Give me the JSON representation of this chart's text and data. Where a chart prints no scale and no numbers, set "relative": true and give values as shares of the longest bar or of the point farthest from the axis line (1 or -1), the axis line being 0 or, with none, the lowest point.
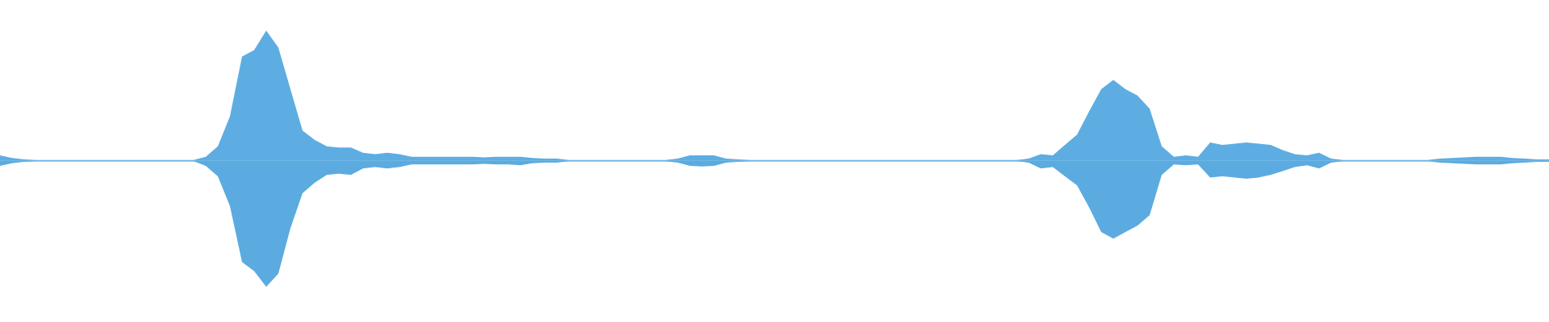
{
  "chart_data": {
    "type": "area",
    "relative": true,
    "categories": [
      null,
      null,
      null,
      null,
      null,
      null,
      null,
      null,
      null,
      null,
      null,
      null,
      null,
      null,
      null,
      null,
      null,
      null,
      null,
      null,
      null,
      null,
      null,
      null,
      null,
      null,
      null,
      null,
      null,
      null,
      null,
      null,
      null,
      null,
      null,
      null,
      null,
      null,
      null,
      null,
      null,
      null,
      null,
      null,
      null,
      null,
      null,
      null,
      null,
      null,
      null,
      null,
      null,
      null,
      null,
      null,
      null,
      null,
      null,
      null,
      null,
      null,
      null,
      null,
      null,
      null,
      null,
      null,
      null,
      null,
      null,
      null,
      null,
      null,
      null,
      null,
      null,
      null,
      null,
      null,
      null,
      null,
      null,
      null,
      null,
      null,
      null,
      null,
      null,
      null,
      null,
      null,
      null,
      null,
      null,
      null,
      null,
      null,
      null,
      null,
      null,
      null,
      null,
      null,
      null,
      null,
      null,
      null,
      null,
      null,
      null,
      null,
      null,
      null,
      null,
      null,
      null,
      null,
      null,
      null,
      null,
      null,
      null,
      null,
      null,
      null,
      null,
      null,
      null
    ],
    "series": [
      {
        "color": "#5dade2",
        "values": [
          0.04,
          0.02,
          0.01,
          0.005,
          0.005,
          0.005,
          0.005,
          0.005,
          0.005,
          0.005,
          0.005,
          0.005,
          0.005,
          0.005,
          0.005,
          0.005,
          0.005,
          0.03,
          0.11,
          0.34,
          0.8,
          0.85,
          1,
          0.87,
          0.55,
          0.23,
          0.16,
          0.11,
          0.1,
          0.1,
          0.06,
          0.05,
          0.06,
          0.05,
          0.03,
          0.03,
          0.03,
          0.03,
          0.03,
          0.03,
          0.025,
          0.03,
          0.03,
          0.03,
          0.02,
          0.015,
          0.015,
          0.005,
          0.005,
          0.005,
          0.005,
          0.005,
          0.005,
          0.005,
          0.005,
          0.005,
          0.015,
          0.04,
          0.04,
          0.04,
          0.015,
          0.01,
          0.005,
          0.005,
          0.005,
          0.005,
          0.005,
          0.005,
          0.005,
          0.005,
          0.005,
          0.005,
          0.005,
          0.005,
          0.005,
          0.005,
          0.005,
          0.005,
          0.005,
          0.005,
          0.005,
          0.005,
          0.005,
          0.005,
          0.005,
          0.015,
          0.05,
          0.04,
          0.12,
          0.2,
          0.38,
          0.55,
          0.62,
          0.55,
          0.5,
          0.4,
          0.11,
          0.03,
          0.04,
          0.03,
          0.14,
          0.12,
          0.13,
          0.14,
          0.13,
          0.12,
          0.08,
          0.05,
          0.04,
          0.06,
          0.015,
          0.005,
          0.005,
          0.005,
          0.005,
          0.005,
          0.005,
          0.005,
          0.005,
          0.015,
          0.02,
          0.025,
          0.03,
          0.03,
          0.03,
          0.02,
          0.015,
          0.01,
          0.01
        ]
      },
      {
        "color": "#5babe0",
        "values": [
          -0.04,
          -0.02,
          -0.01,
          -0.005,
          -0.005,
          -0.005,
          -0.005,
          -0.005,
          -0.005,
          -0.005,
          -0.005,
          -0.005,
          -0.005,
          -0.005,
          -0.005,
          -0.005,
          -0.005,
          -0.04,
          -0.12,
          -0.35,
          -0.78,
          -0.85,
          -0.97,
          -0.87,
          -0.52,
          -0.25,
          -0.17,
          -0.11,
          -0.1,
          -0.11,
          -0.06,
          -0.05,
          -0.06,
          -0.05,
          -0.03,
          -0.03,
          -0.03,
          -0.03,
          -0.03,
          -0.03,
          -0.025,
          -0.03,
          -0.03,
          -0.035,
          -0.02,
          -0.015,
          -0.015,
          -0.005,
          -0.005,
          -0.005,
          -0.005,
          -0.005,
          -0.005,
          -0.005,
          -0.005,
          -0.005,
          -0.015,
          -0.04,
          -0.045,
          -0.04,
          -0.015,
          -0.01,
          -0.005,
          -0.005,
          -0.005,
          -0.005,
          -0.005,
          -0.005,
          -0.005,
          -0.005,
          -0.005,
          -0.005,
          -0.005,
          -0.005,
          -0.005,
          -0.005,
          -0.005,
          -0.005,
          -0.005,
          -0.005,
          -0.005,
          -0.005,
          -0.005,
          -0.005,
          -0.005,
          -0.015,
          -0.06,
          -0.05,
          -0.12,
          -0.19,
          -0.36,
          -0.55,
          -0.6,
          -0.55,
          -0.5,
          -0.42,
          -0.11,
          -0.03,
          -0.035,
          -0.03,
          -0.13,
          -0.12,
          -0.13,
          -0.14,
          -0.13,
          -0.11,
          -0.08,
          -0.05,
          -0.035,
          -0.06,
          -0.015,
          -0.005,
          -0.005,
          -0.005,
          -0.005,
          -0.005,
          -0.005,
          -0.005,
          -0.005,
          -0.015,
          -0.02,
          -0.025,
          -0.03,
          -0.03,
          -0.03,
          -0.02,
          -0.015,
          -0.01,
          -0.01
        ]
      }
    ]
  }
}
